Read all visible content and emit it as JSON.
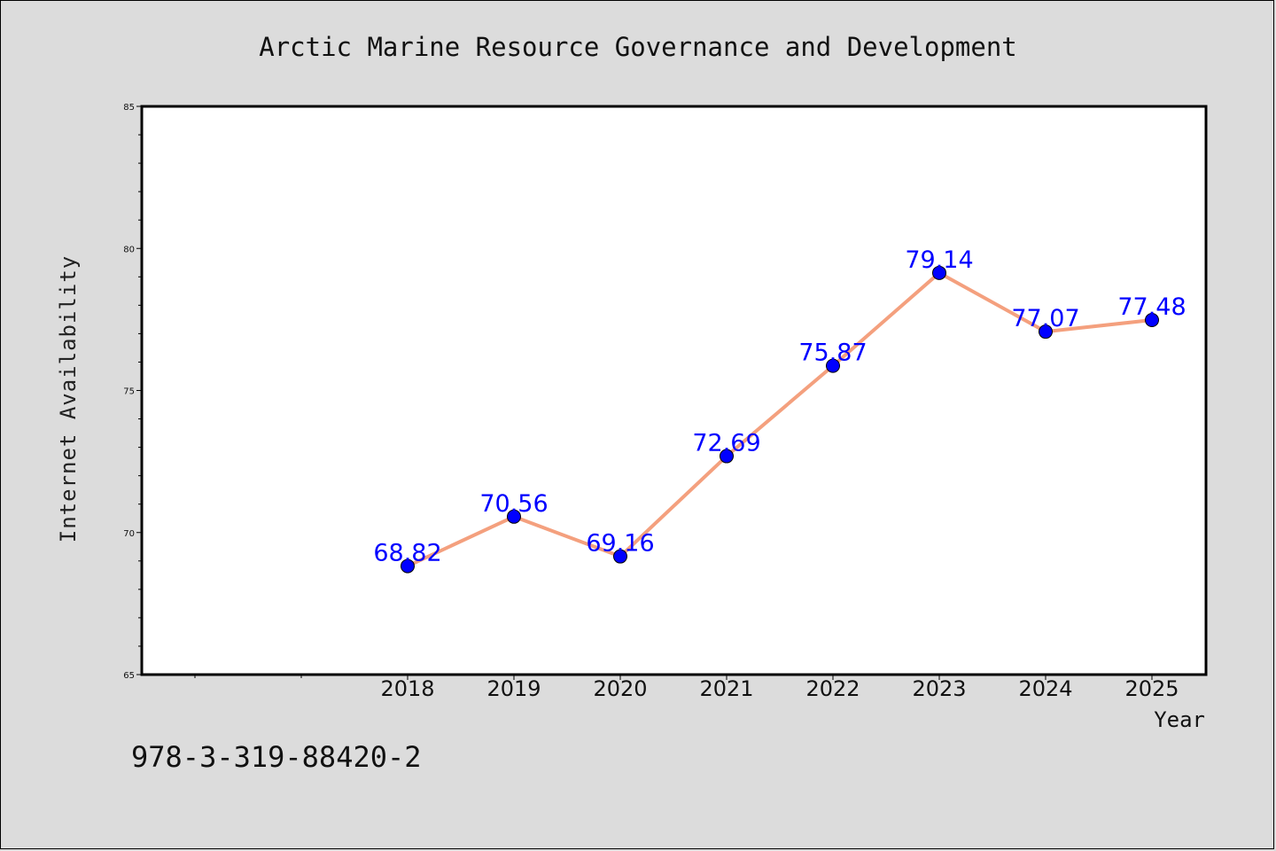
{
  "chart_data": {
    "type": "line",
    "title": "Arctic Marine Resource Governance and Development",
    "xlabel": "Year",
    "ylabel": "Internet Availability",
    "categories": [
      "2018",
      "2019",
      "2020",
      "2021",
      "2022",
      "2023",
      "2024",
      "2025"
    ],
    "series": [
      {
        "values": [
          68.82,
          70.56,
          69.16,
          72.69,
          75.87,
          79.14,
          77.07,
          77.48
        ]
      }
    ],
    "data_labels": [
      "68.82",
      "70.56",
      "69.16",
      "72.69",
      "75.87",
      "79.14",
      "77.07",
      "77.48"
    ],
    "ylim": [
      65,
      85
    ],
    "yticks": [
      65,
      70,
      75,
      80,
      85
    ],
    "ytick_labels": [
      "65",
      "70",
      "75",
      "80",
      "85"
    ],
    "grid": false,
    "legend": "none",
    "colors": {
      "line": "#f4a07e",
      "marker": "#0000ff",
      "label": "#0000ff",
      "background": "#dcdcdc",
      "plot_background": "#ffffff"
    }
  },
  "footer_text": "978-3-319-88420-2"
}
